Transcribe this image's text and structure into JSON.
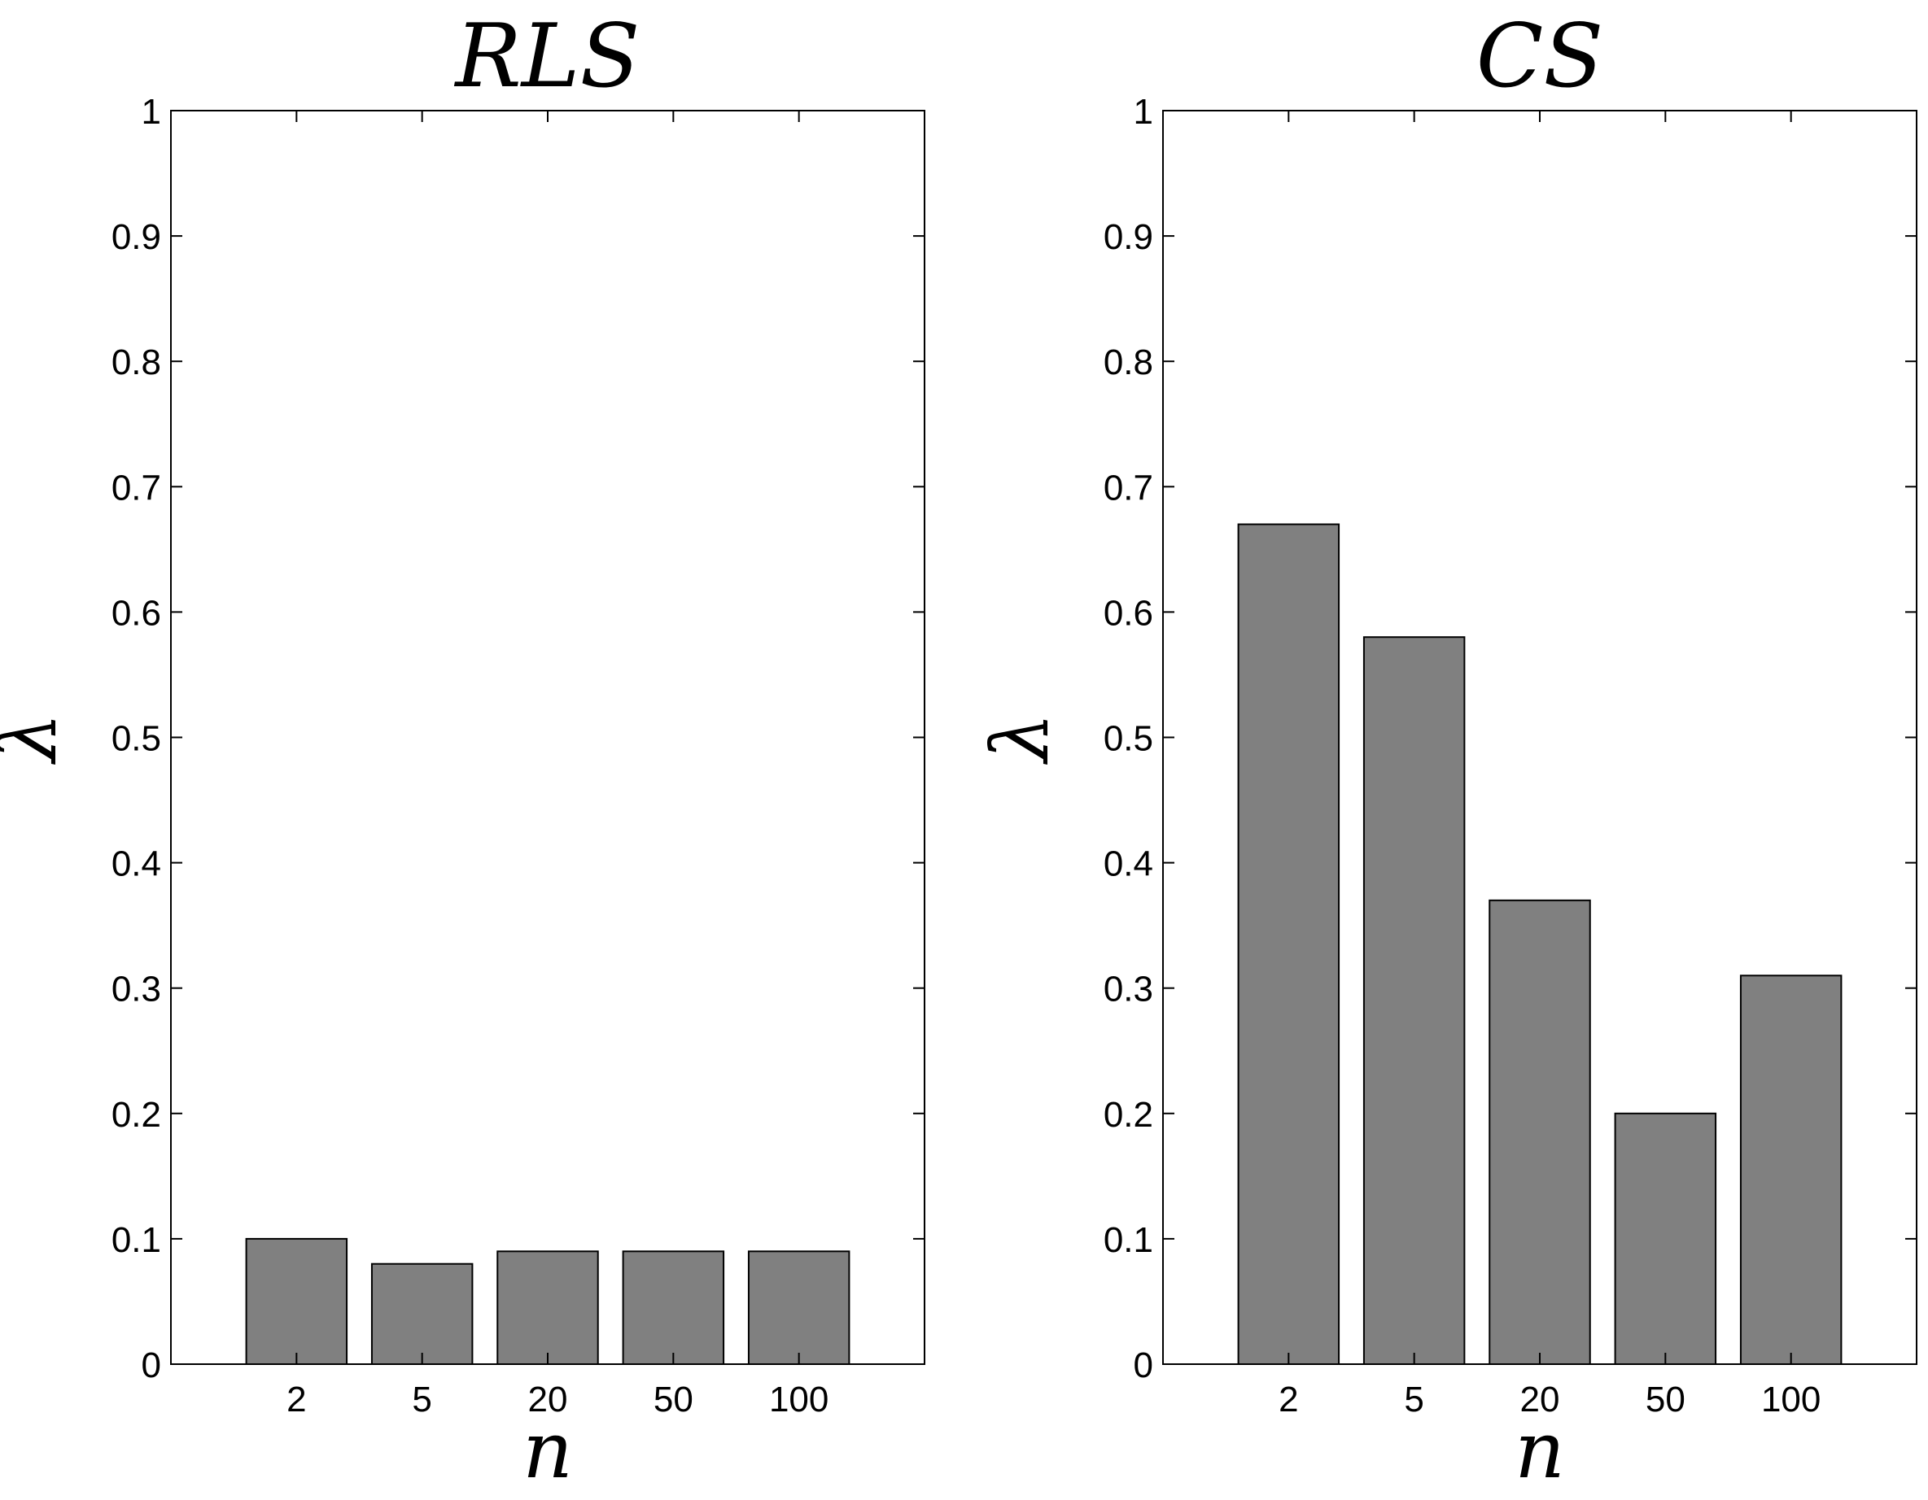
{
  "chart_data": [
    {
      "type": "bar",
      "title": "RLS",
      "xlabel": "n",
      "ylabel": "λ",
      "categories": [
        "2",
        "5",
        "20",
        "50",
        "100"
      ],
      "values": [
        0.1,
        0.08,
        0.09,
        0.09,
        0.09
      ],
      "ylim": [
        0,
        1
      ],
      "yticks": [
        "0",
        "0.1",
        "0.2",
        "0.3",
        "0.4",
        "0.5",
        "0.6",
        "0.7",
        "0.8",
        "0.9",
        "1"
      ],
      "bar_color": "#808080",
      "grid": false
    },
    {
      "type": "bar",
      "title": "CS",
      "xlabel": "n",
      "ylabel": "λ",
      "categories": [
        "2",
        "5",
        "20",
        "50",
        "100"
      ],
      "values": [
        0.67,
        0.58,
        0.37,
        0.2,
        0.31
      ],
      "ylim": [
        0,
        1
      ],
      "yticks": [
        "0",
        "0.1",
        "0.2",
        "0.3",
        "0.4",
        "0.5",
        "0.6",
        "0.7",
        "0.8",
        "0.9",
        "1"
      ],
      "bar_color": "#808080",
      "grid": false
    }
  ]
}
